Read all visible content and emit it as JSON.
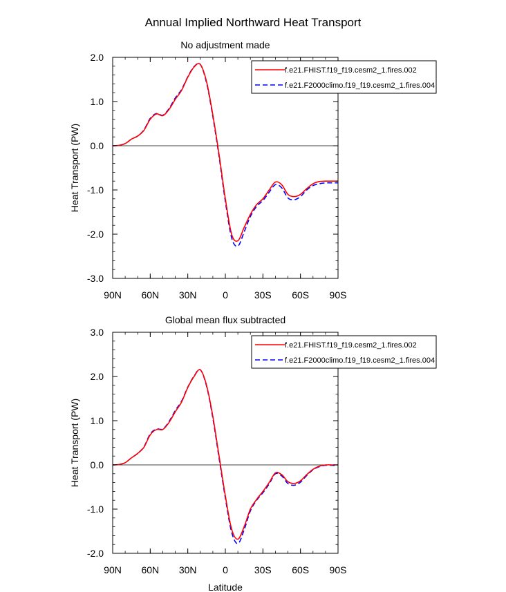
{
  "figure_title": "Annual Implied Northward Heat Transport",
  "legend": {
    "entries": [
      {
        "label": "f.e21.FHIST.f19_f19.cesm2_1.fires.002",
        "color": "#ff0000",
        "dash": "solid"
      },
      {
        "label": "f.e21.F2000climo.f19_f19.cesm2_1.fires.004",
        "color": "#0000ff",
        "dash": "dashed"
      }
    ]
  },
  "chart_data": [
    {
      "type": "line",
      "title": "No adjustment made",
      "xlabel": "",
      "ylabel": "Heat Transport (PW)",
      "xlim": [
        90,
        -90
      ],
      "ylim": [
        -3.0,
        2.0
      ],
      "x_ticks": [
        90,
        60,
        30,
        0,
        -30,
        -60,
        -90
      ],
      "x_tick_labels": [
        "90N",
        "60N",
        "30N",
        "0",
        "30S",
        "60S",
        "90S"
      ],
      "y_ticks": [
        2.0,
        1.0,
        0.0,
        -1.0,
        -2.0,
        -3.0
      ],
      "y_tick_labels": [
        "2.0",
        "1.0",
        "0.0",
        "-1.0",
        "-2.0",
        "-3.0"
      ],
      "zero_line": true,
      "legend_position": "top-right",
      "x": [
        90,
        85,
        80,
        75,
        70,
        65,
        60,
        55,
        50,
        45,
        40,
        35,
        30,
        25,
        20,
        15,
        10,
        5,
        0,
        -5,
        -10,
        -15,
        -20,
        -25,
        -30,
        -35,
        -40,
        -45,
        -50,
        -55,
        -60,
        -65,
        -70,
        -75,
        -80,
        -85,
        -90
      ],
      "series": [
        {
          "name": "f.e21.FHIST.f19_f19.cesm2_1.fires.002",
          "color": "#ff0000",
          "dash": "solid",
          "values": [
            0.0,
            0.01,
            0.05,
            0.15,
            0.22,
            0.35,
            0.6,
            0.72,
            0.68,
            0.82,
            1.05,
            1.25,
            1.55,
            1.78,
            1.84,
            1.45,
            0.7,
            -0.2,
            -1.2,
            -2.0,
            -2.15,
            -1.85,
            -1.55,
            -1.33,
            -1.2,
            -1.0,
            -0.82,
            -0.88,
            -1.1,
            -1.15,
            -1.1,
            -0.97,
            -0.86,
            -0.81,
            -0.8,
            -0.8,
            -0.8
          ]
        },
        {
          "name": "f.e21.F2000climo.f19_f19.cesm2_1.fires.004",
          "color": "#0000ff",
          "dash": "dashed",
          "values": [
            0.0,
            0.01,
            0.05,
            0.15,
            0.22,
            0.36,
            0.62,
            0.73,
            0.69,
            0.84,
            1.08,
            1.27,
            1.56,
            1.79,
            1.84,
            1.42,
            0.66,
            -0.25,
            -1.26,
            -2.08,
            -2.27,
            -1.95,
            -1.6,
            -1.37,
            -1.24,
            -1.05,
            -0.88,
            -0.95,
            -1.18,
            -1.22,
            -1.15,
            -1.0,
            -0.9,
            -0.86,
            -0.84,
            -0.84,
            -0.84
          ]
        }
      ]
    },
    {
      "type": "line",
      "title": "Global mean flux subtracted",
      "xlabel": "Latitude",
      "ylabel": "Heat Transport (PW)",
      "xlim": [
        90,
        -90
      ],
      "ylim": [
        -2.0,
        3.0
      ],
      "x_ticks": [
        90,
        60,
        30,
        0,
        -30,
        -60,
        -90
      ],
      "x_tick_labels": [
        "90N",
        "60N",
        "30N",
        "0",
        "30S",
        "60S",
        "90S"
      ],
      "y_ticks": [
        3.0,
        2.0,
        1.0,
        0.0,
        -1.0,
        -2.0
      ],
      "y_tick_labels": [
        "3.0",
        "2.0",
        "1.0",
        "0.0",
        "-1.0",
        "-2.0"
      ],
      "zero_line": true,
      "legend_position": "top-right",
      "x": [
        90,
        85,
        80,
        75,
        70,
        65,
        60,
        55,
        50,
        45,
        40,
        35,
        30,
        25,
        20,
        15,
        10,
        5,
        0,
        -5,
        -10,
        -15,
        -20,
        -25,
        -30,
        -35,
        -40,
        -45,
        -50,
        -55,
        -60,
        -65,
        -70,
        -75,
        -80,
        -85,
        -90
      ],
      "series": [
        {
          "name": "f.e21.FHIST.f19_f19.cesm2_1.fires.002",
          "color": "#ff0000",
          "dash": "solid",
          "values": [
            0.0,
            0.01,
            0.05,
            0.16,
            0.26,
            0.4,
            0.68,
            0.8,
            0.8,
            0.96,
            1.2,
            1.42,
            1.75,
            2.0,
            2.15,
            1.8,
            1.1,
            0.2,
            -0.7,
            -1.45,
            -1.68,
            -1.4,
            -1.0,
            -0.78,
            -0.6,
            -0.4,
            -0.18,
            -0.22,
            -0.38,
            -0.42,
            -0.36,
            -0.22,
            -0.1,
            -0.03,
            0.0,
            0.0,
            0.0
          ]
        },
        {
          "name": "f.e21.F2000climo.f19_f19.cesm2_1.fires.004",
          "color": "#0000ff",
          "dash": "dashed",
          "values": [
            0.0,
            0.01,
            0.05,
            0.16,
            0.26,
            0.41,
            0.7,
            0.81,
            0.81,
            0.98,
            1.23,
            1.44,
            1.76,
            2.01,
            2.15,
            1.78,
            1.06,
            0.15,
            -0.75,
            -1.52,
            -1.78,
            -1.47,
            -1.04,
            -0.8,
            -0.63,
            -0.43,
            -0.2,
            -0.25,
            -0.42,
            -0.46,
            -0.39,
            -0.24,
            -0.11,
            -0.04,
            -0.01,
            -0.01,
            -0.01
          ]
        }
      ]
    }
  ]
}
